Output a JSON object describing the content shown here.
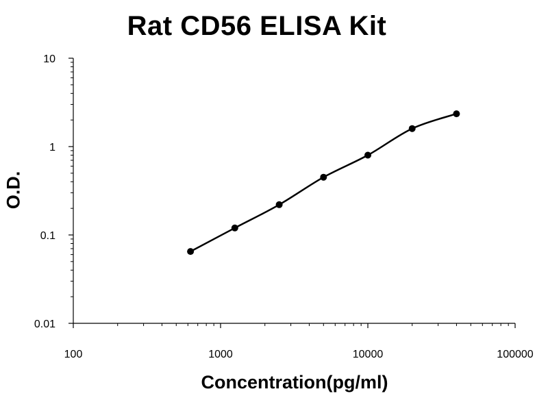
{
  "chart_data": {
    "type": "line",
    "title": "Rat CD56 ELISA Kit",
    "xlabel": "Concentration(pg/ml)",
    "ylabel": "O.D.",
    "x_scale": "log",
    "y_scale": "log",
    "xlim": [
      100,
      100000
    ],
    "ylim": [
      0.01,
      10
    ],
    "x_ticks": [
      "100",
      "1000",
      "10000",
      "100000"
    ],
    "y_ticks": [
      "0.01",
      "0.1",
      "1",
      "10"
    ],
    "grid": false,
    "legend": "none",
    "series": [
      {
        "x": [
          625,
          1250,
          2500,
          5000,
          10000,
          20000,
          40000
        ],
        "values": [
          0.065,
          0.12,
          0.22,
          0.45,
          0.8,
          1.6,
          2.35
        ]
      }
    ],
    "colors": {
      "line": "#000000",
      "marker": "#000000",
      "axis": "#000000"
    }
  }
}
